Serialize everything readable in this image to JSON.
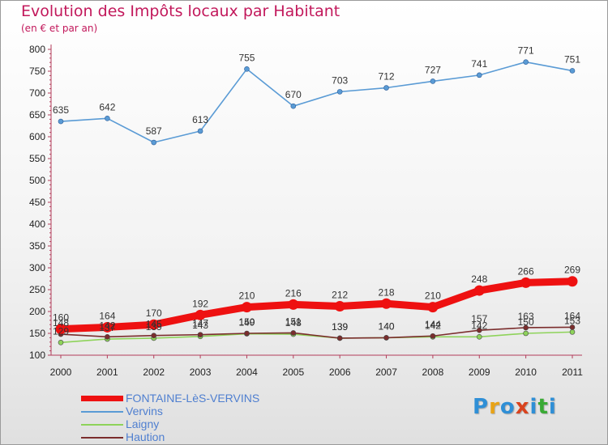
{
  "title": "Evolution des Impôts locaux par Habitant",
  "subtitle": "(en € et par an)",
  "logo": {
    "text": "Proxiti",
    "colors": [
      "#2f8fd6",
      "#e8a317",
      "#2f8fd6",
      "#d9431e",
      "#2f8fd6",
      "#3aaa35",
      "#2f8fd6"
    ]
  },
  "chart_data": {
    "type": "line",
    "x": [
      "2000",
      "2001",
      "2002",
      "2003",
      "2004",
      "2005",
      "2006",
      "2007",
      "2008",
      "2009",
      "2010",
      "2011"
    ],
    "ylim": [
      100,
      800
    ],
    "yticks": [
      "100",
      "150",
      "200",
      "250",
      "300",
      "350",
      "400",
      "450",
      "500",
      "550",
      "600",
      "650",
      "700",
      "750",
      "800"
    ],
    "grid": false,
    "legend": "bottom-left",
    "series": [
      {
        "name": "FONTAINE-LèS-VERVINS",
        "color": "#ee1111",
        "values": [
          160,
          164,
          170,
          192,
          210,
          216,
          212,
          218,
          210,
          248,
          266,
          269
        ],
        "labels": [
          "160",
          "164",
          "170",
          "192",
          "210",
          "216",
          "212",
          "218",
          "210",
          "248",
          "266",
          "269"
        ]
      },
      {
        "name": "Vervins",
        "color": "#5a9bd5",
        "values": [
          635,
          642,
          587,
          613,
          755,
          670,
          703,
          712,
          727,
          741,
          771,
          751
        ],
        "labels": [
          "635",
          "642",
          "587",
          "613",
          "755",
          "670",
          "703",
          "712",
          "727",
          "741",
          "771",
          "751"
        ]
      },
      {
        "name": "Laigny",
        "color": "#8ed35a",
        "values": [
          129,
          137,
          139,
          143,
          149,
          148,
          139,
          140,
          142,
          142,
          150,
          153
        ],
        "labels": [
          "129",
          "137",
          "139",
          "143",
          "149",
          "148",
          "139",
          "140",
          "142",
          "142",
          "150",
          "153"
        ]
      },
      {
        "name": "Haution",
        "color": "#7b2d2d",
        "values": [
          148,
          142,
          145,
          147,
          150,
          151,
          139,
          140,
          144,
          157,
          163,
          164
        ],
        "labels": [
          "148",
          "142",
          "145",
          "147",
          "150",
          "151",
          "139",
          "140",
          "144",
          "157",
          "163",
          "164"
        ]
      }
    ]
  }
}
